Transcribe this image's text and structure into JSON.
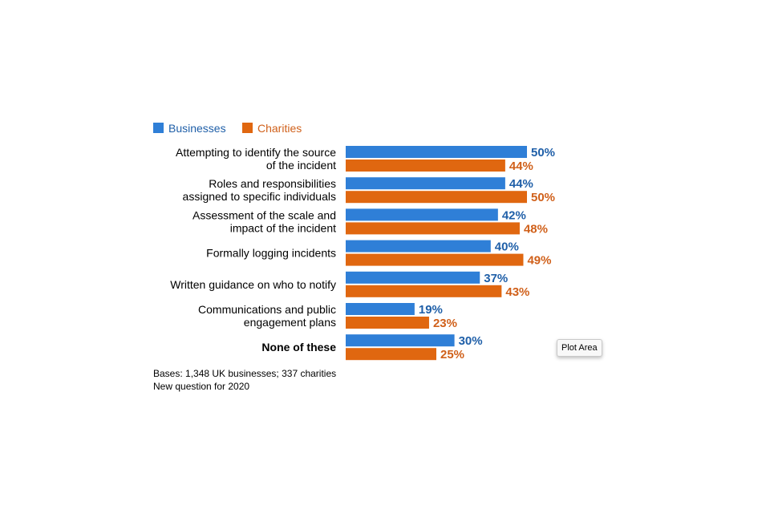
{
  "colors": {
    "businesses": "#2f7fd7",
    "charities": "#e06710",
    "businesses_text": "#1f5fa8",
    "charities_text": "#d0601a"
  },
  "chart_data": {
    "type": "bar",
    "orientation": "horizontal",
    "categories": [
      [
        "Attempting to identify the source",
        "of the incident"
      ],
      [
        "Roles and responsibilities",
        "assigned to specific individuals"
      ],
      [
        "Assessment of the scale and",
        "impact of the incident"
      ],
      [
        "Formally logging incidents"
      ],
      [
        "Written guidance on who to notify"
      ],
      [
        "Communications and public",
        "engagement plans"
      ],
      [
        "None of these"
      ]
    ],
    "bold_categories": [
      6
    ],
    "series": [
      {
        "name": "Businesses",
        "values": [
          50,
          44,
          42,
          40,
          37,
          19,
          30
        ],
        "labels": [
          "50%",
          "44%",
          "42%",
          "40%",
          "37%",
          "19%",
          "30%"
        ]
      },
      {
        "name": "Charities",
        "values": [
          44,
          50,
          48,
          49,
          43,
          23,
          25
        ],
        "labels": [
          "44%",
          "50%",
          "48%",
          "49%",
          "43%",
          "23%",
          "25%"
        ]
      }
    ],
    "xlim": [
      0,
      50
    ],
    "legend_position": "top-left",
    "grid": false
  },
  "notes": [
    "Bases: 1,348 UK businesses; 337 charities",
    "New question for 2020"
  ],
  "tooltip": "Plot Area"
}
